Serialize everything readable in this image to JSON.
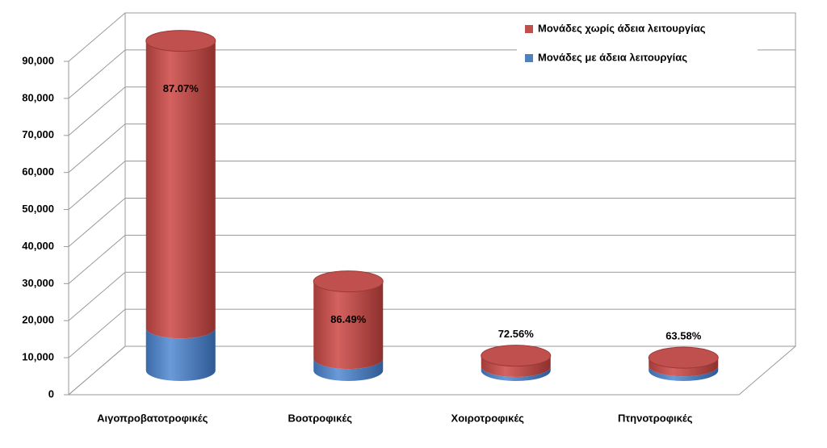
{
  "chart_data": {
    "type": "bar3d",
    "categories": [
      "Αιγοπροβατοτροφικές",
      "Βοοτροφικές",
      "Χοιροτροφικές",
      "Πτηνοτροφικές"
    ],
    "series": [
      {
        "name": "Μονάδες με άδεια λειτουργίας",
        "color": "#4f81bd",
        "values": [
          11500,
          3250,
          1100,
          1260
        ]
      },
      {
        "name": "Μονάδες χωρίς άδεια λειτουργίας",
        "color": "#c0504d",
        "values": [
          77500,
          20800,
          2900,
          2200
        ]
      }
    ],
    "share_labels": [
      "87.07%",
      "86.49%",
      "72.56%",
      "63.58%"
    ],
    "ylim": [
      0,
      90000
    ],
    "yticks": [
      0,
      {
        "value": 10000,
        "label": "10,000"
      },
      {
        "value": 20000,
        "label": "20,000"
      },
      {
        "value": 30000,
        "label": "30,000"
      },
      {
        "value": 40000,
        "label": "40,000"
      },
      {
        "value": 50000,
        "label": "50,000"
      },
      {
        "value": 60000,
        "label": "60,000"
      },
      {
        "value": 70000,
        "label": "70,000"
      },
      {
        "value": 80000,
        "label": "80,000"
      },
      {
        "value": 90000,
        "label": "90,000"
      }
    ],
    "grid": true
  }
}
